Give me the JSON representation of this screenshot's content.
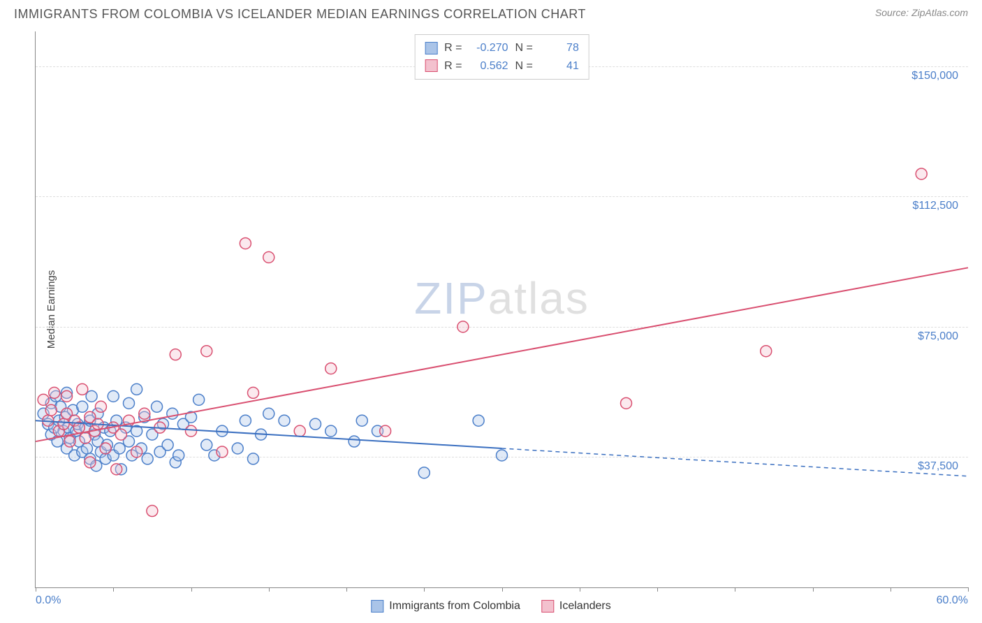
{
  "header": {
    "title": "IMMIGRANTS FROM COLOMBIA VS ICELANDER MEDIAN EARNINGS CORRELATION CHART",
    "source": "Source: ZipAtlas.com"
  },
  "chart": {
    "type": "scatter",
    "background_color": "#ffffff",
    "grid_color": "#dddddd",
    "axis_color": "#888888",
    "yaxis_title": "Median Earnings",
    "ylim": [
      0,
      160000
    ],
    "yticks": [
      37500,
      75000,
      112500,
      150000
    ],
    "ytick_labels": [
      "$37,500",
      "$75,000",
      "$112,500",
      "$150,000"
    ],
    "ytick_color": "#4a7ec9",
    "xlim": [
      0,
      60
    ],
    "xaxis_left_label": "0.0%",
    "xaxis_right_label": "60.0%",
    "xtick_positions": [
      0,
      5,
      10,
      15,
      20,
      25,
      30,
      35,
      40,
      45,
      50,
      55,
      60
    ],
    "marker_radius": 8,
    "watermark": {
      "zip": "ZIP",
      "atlas": "atlas"
    }
  },
  "legend_top": {
    "rows": [
      {
        "swatch_fill": "#aac4e8",
        "swatch_stroke": "#4a7ec9",
        "r_label": "R =",
        "r_value": "-0.270",
        "n_label": "N =",
        "n_value": "78"
      },
      {
        "swatch_fill": "#f3c1ce",
        "swatch_stroke": "#d94f70",
        "r_label": "R =",
        "r_value": "0.562",
        "n_label": "N =",
        "n_value": "41"
      }
    ]
  },
  "legend_bottom": {
    "items": [
      {
        "swatch_fill": "#aac4e8",
        "swatch_stroke": "#4a7ec9",
        "label": "Immigrants from Colombia"
      },
      {
        "swatch_fill": "#f3c1ce",
        "swatch_stroke": "#d94f70",
        "label": "Icelanders"
      }
    ]
  },
  "series": [
    {
      "name": "colombia",
      "color_fill": "#aac4e8",
      "color_stroke": "#4a7ec9",
      "trend": {
        "x1": 0,
        "y1": 48000,
        "x2": 30,
        "y2": 40000,
        "x2_ext": 60,
        "y2_ext": 32000,
        "stroke": "#3a6fc0",
        "stroke_width": 2
      },
      "points": [
        [
          0.5,
          50000
        ],
        [
          0.8,
          47000
        ],
        [
          1.0,
          53000
        ],
        [
          1.0,
          44000
        ],
        [
          1.2,
          46000
        ],
        [
          1.3,
          55000
        ],
        [
          1.4,
          42000
        ],
        [
          1.5,
          48000
        ],
        [
          1.6,
          52000
        ],
        [
          1.8,
          45000
        ],
        [
          1.9,
          49000
        ],
        [
          2.0,
          56000
        ],
        [
          2.0,
          40000
        ],
        [
          2.1,
          46000
        ],
        [
          2.2,
          43000
        ],
        [
          2.4,
          51000
        ],
        [
          2.5,
          38000
        ],
        [
          2.6,
          45000
        ],
        [
          2.7,
          47000
        ],
        [
          2.8,
          42000
        ],
        [
          3.0,
          52000
        ],
        [
          3.0,
          39000
        ],
        [
          3.2,
          46000
        ],
        [
          3.3,
          40000
        ],
        [
          3.5,
          48000
        ],
        [
          3.5,
          37000
        ],
        [
          3.6,
          55000
        ],
        [
          3.8,
          44000
        ],
        [
          3.9,
          35000
        ],
        [
          4.0,
          50000
        ],
        [
          4.0,
          42000
        ],
        [
          4.2,
          39000
        ],
        [
          4.4,
          46000
        ],
        [
          4.5,
          37000
        ],
        [
          4.6,
          41000
        ],
        [
          4.8,
          45000
        ],
        [
          5.0,
          55000
        ],
        [
          5.0,
          38000
        ],
        [
          5.2,
          48000
        ],
        [
          5.4,
          40000
        ],
        [
          5.5,
          34000
        ],
        [
          5.8,
          46000
        ],
        [
          6.0,
          42000
        ],
        [
          6.0,
          53000
        ],
        [
          6.2,
          38000
        ],
        [
          6.5,
          45000
        ],
        [
          6.5,
          57000
        ],
        [
          6.8,
          40000
        ],
        [
          7.0,
          49000
        ],
        [
          7.2,
          37000
        ],
        [
          7.5,
          44000
        ],
        [
          7.8,
          52000
        ],
        [
          8.0,
          39000
        ],
        [
          8.2,
          47000
        ],
        [
          8.5,
          41000
        ],
        [
          8.8,
          50000
        ],
        [
          9.0,
          36000
        ],
        [
          9.2,
          38000
        ],
        [
          9.5,
          47000
        ],
        [
          10.0,
          49000
        ],
        [
          10.5,
          54000
        ],
        [
          11.0,
          41000
        ],
        [
          11.5,
          38000
        ],
        [
          12.0,
          45000
        ],
        [
          13.0,
          40000
        ],
        [
          13.5,
          48000
        ],
        [
          14.0,
          37000
        ],
        [
          14.5,
          44000
        ],
        [
          15.0,
          50000
        ],
        [
          16.0,
          48000
        ],
        [
          18.0,
          47000
        ],
        [
          19.0,
          45000
        ],
        [
          20.5,
          42000
        ],
        [
          21.0,
          48000
        ],
        [
          22.0,
          45000
        ],
        [
          25.0,
          33000
        ],
        [
          28.5,
          48000
        ],
        [
          30.0,
          38000
        ]
      ]
    },
    {
      "name": "icelanders",
      "color_fill": "#f3c1ce",
      "color_stroke": "#d94f70",
      "trend": {
        "x1": 0,
        "y1": 42000,
        "x2": 60,
        "y2": 92000,
        "stroke": "#d94f70",
        "stroke_width": 2
      },
      "points": [
        [
          0.5,
          54000
        ],
        [
          0.8,
          48000
        ],
        [
          1.0,
          51000
        ],
        [
          1.2,
          56000
        ],
        [
          1.5,
          45000
        ],
        [
          1.8,
          47000
        ],
        [
          2.0,
          50000
        ],
        [
          2.0,
          55000
        ],
        [
          2.2,
          42000
        ],
        [
          2.5,
          48000
        ],
        [
          2.8,
          46000
        ],
        [
          3.0,
          57000
        ],
        [
          3.2,
          43000
        ],
        [
          3.5,
          49000
        ],
        [
          3.5,
          36000
        ],
        [
          3.8,
          45000
        ],
        [
          4.0,
          47000
        ],
        [
          4.2,
          52000
        ],
        [
          4.5,
          40000
        ],
        [
          5.0,
          46000
        ],
        [
          5.2,
          34000
        ],
        [
          5.5,
          44000
        ],
        [
          6.0,
          48000
        ],
        [
          6.5,
          39000
        ],
        [
          7.0,
          50000
        ],
        [
          7.5,
          22000
        ],
        [
          8.0,
          46000
        ],
        [
          9.0,
          67000
        ],
        [
          10.0,
          45000
        ],
        [
          11.0,
          68000
        ],
        [
          12.0,
          39000
        ],
        [
          13.5,
          99000
        ],
        [
          14.0,
          56000
        ],
        [
          15.0,
          95000
        ],
        [
          17.0,
          45000
        ],
        [
          19.0,
          63000
        ],
        [
          22.5,
          45000
        ],
        [
          27.5,
          75000
        ],
        [
          38.0,
          53000
        ],
        [
          47.0,
          68000
        ],
        [
          57.0,
          119000
        ]
      ]
    }
  ]
}
